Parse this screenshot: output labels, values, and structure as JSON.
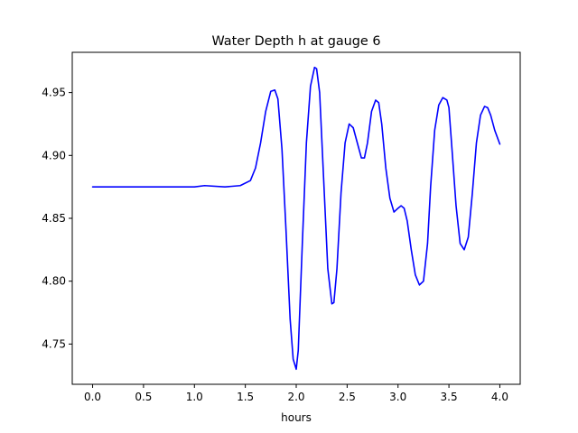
{
  "chart_data": {
    "type": "line",
    "title": "Water Depth h at gauge 6",
    "xlabel": "hours",
    "ylabel": "",
    "xlim": [
      -0.2,
      4.2
    ],
    "ylim": [
      4.718,
      4.982
    ],
    "xticks": [
      0.0,
      0.5,
      1.0,
      1.5,
      2.0,
      2.5,
      3.0,
      3.5,
      4.0
    ],
    "xtick_labels": [
      "0.0",
      "0.5",
      "1.0",
      "1.5",
      "2.0",
      "2.5",
      "3.0",
      "3.5",
      "4.0"
    ],
    "yticks": [
      4.75,
      4.8,
      4.85,
      4.9,
      4.95
    ],
    "ytick_labels": [
      "4.75",
      "4.80",
      "4.85",
      "4.90",
      "4.95"
    ],
    "grid": false,
    "colors": {
      "line": "#0000ff",
      "axes": "#000000",
      "background": "#ffffff"
    },
    "series": [
      {
        "x": [
          0.0,
          0.5,
          1.0,
          1.1,
          1.3,
          1.45,
          1.55,
          1.6,
          1.65,
          1.7,
          1.75,
          1.79,
          1.82,
          1.86,
          1.9,
          1.94,
          1.97,
          2.0,
          2.02,
          2.06,
          2.1,
          2.14,
          2.18,
          2.2,
          2.23,
          2.27,
          2.31,
          2.35,
          2.37,
          2.4,
          2.44,
          2.48,
          2.52,
          2.56,
          2.6,
          2.64,
          2.67,
          2.7,
          2.74,
          2.78,
          2.81,
          2.84,
          2.88,
          2.92,
          2.96,
          3.0,
          3.03,
          3.06,
          3.09,
          3.13,
          3.17,
          3.21,
          3.25,
          3.29,
          3.32,
          3.36,
          3.4,
          3.44,
          3.48,
          3.5,
          3.53,
          3.57,
          3.61,
          3.65,
          3.69,
          3.73,
          3.77,
          3.81,
          3.85,
          3.88,
          3.91,
          3.95,
          4.0
        ],
        "y": [
          4.875,
          4.875,
          4.875,
          4.876,
          4.875,
          4.876,
          4.88,
          4.89,
          4.91,
          4.935,
          4.951,
          4.952,
          4.945,
          4.905,
          4.84,
          4.77,
          4.738,
          4.73,
          4.745,
          4.83,
          4.91,
          4.955,
          4.97,
          4.969,
          4.95,
          4.88,
          4.81,
          4.782,
          4.783,
          4.81,
          4.87,
          4.91,
          4.925,
          4.922,
          4.91,
          4.898,
          4.898,
          4.91,
          4.935,
          4.944,
          4.942,
          4.925,
          4.89,
          4.866,
          4.855,
          4.858,
          4.86,
          4.858,
          4.848,
          4.825,
          4.805,
          4.797,
          4.8,
          4.83,
          4.875,
          4.92,
          4.94,
          4.946,
          4.944,
          4.938,
          4.905,
          4.86,
          4.83,
          4.825,
          4.835,
          4.87,
          4.91,
          4.932,
          4.939,
          4.938,
          4.932,
          4.92,
          4.909
        ]
      }
    ]
  }
}
